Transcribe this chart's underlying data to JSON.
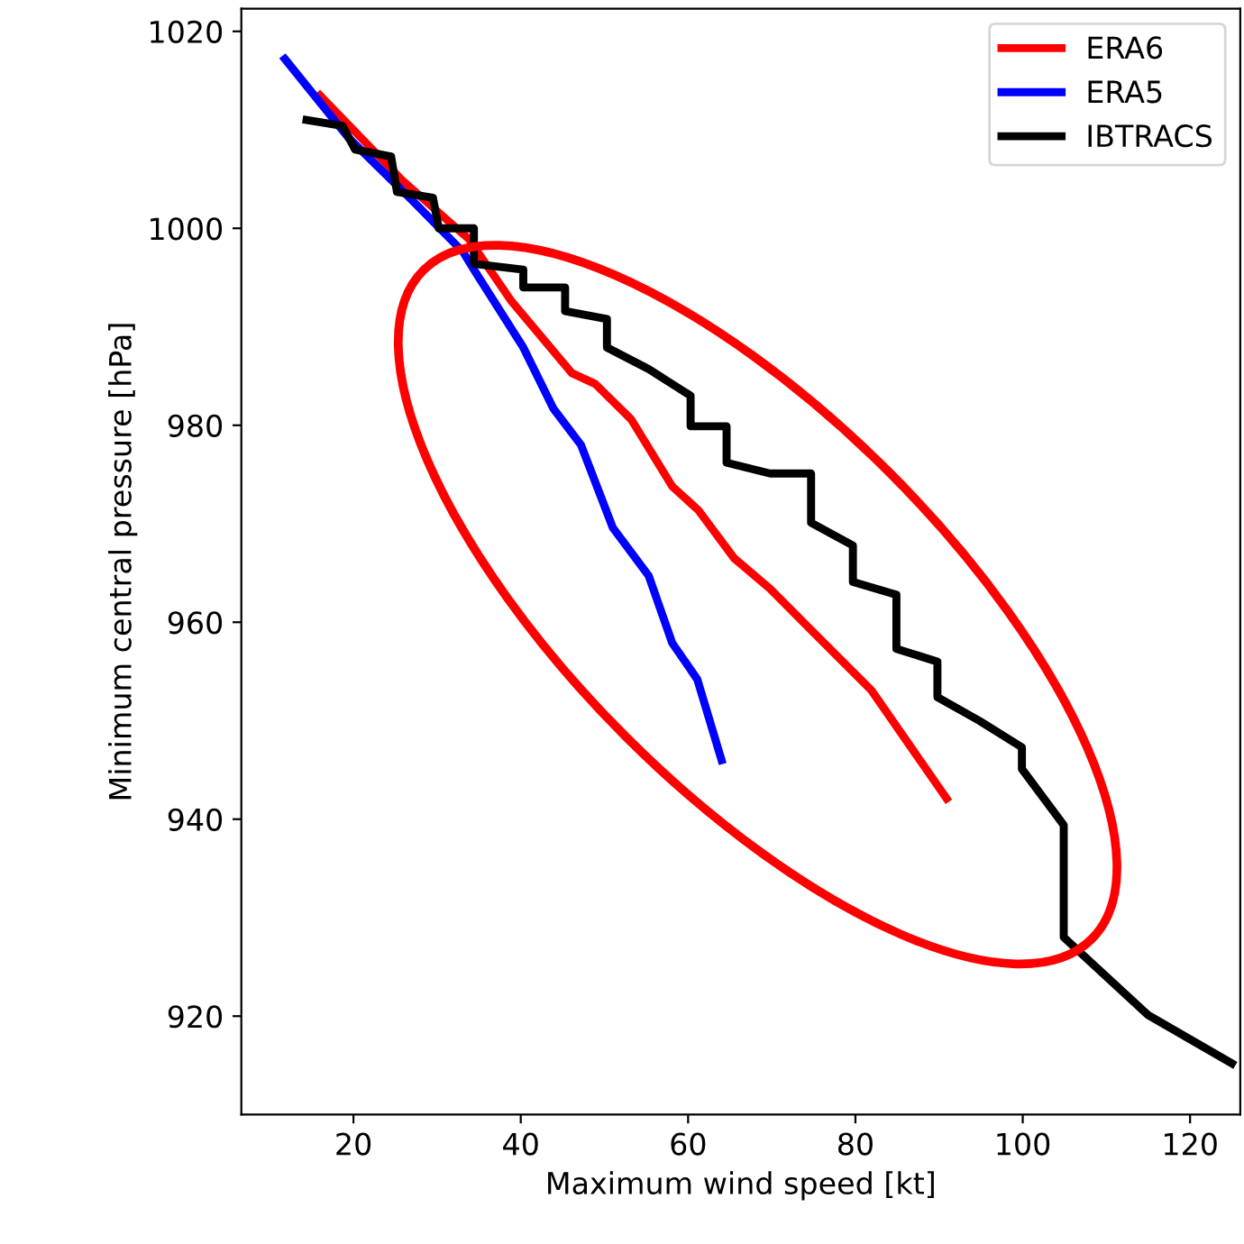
{
  "chart_data": {
    "type": "line",
    "xlabel": "Maximum wind speed [kt]",
    "ylabel": "Minimum central pressure [hPa]",
    "xlim": [
      6.6,
      126
    ],
    "ylim": [
      910,
      1022.3
    ],
    "xticks": [
      20,
      40,
      60,
      80,
      100,
      120
    ],
    "yticks": [
      920,
      940,
      960,
      980,
      1000,
      1020
    ],
    "grid": false,
    "legend": "top right",
    "marker": "none",
    "line_style": "solid",
    "series": [
      {
        "name": "ERA6",
        "color": "#ff0000",
        "x": [
          16,
          25.8,
          33.8,
          38.8,
          46.1,
          48.9,
          53.2,
          58.1,
          61.2,
          65.5,
          69.8,
          74.7,
          81.9,
          90.9
        ],
        "values": [
          1013.5,
          1004.9,
          998.9,
          992.7,
          985.3,
          984.2,
          980.6,
          973.8,
          971.4,
          966.5,
          963.4,
          959.2,
          953.1,
          942.1
        ]
      },
      {
        "name": "ERA5",
        "color": "#0000ff",
        "x": [
          11.8,
          19.4,
          27.3,
          33.1,
          34.4,
          40.3,
          43.9,
          47.2,
          51,
          55.3,
          58.1,
          61.1,
          64
        ],
        "values": [
          1017.2,
          1009.2,
          1002.6,
          997.6,
          995.8,
          987.9,
          981.7,
          978,
          969.6,
          964.7,
          957.9,
          954.2,
          946
        ]
      },
      {
        "name": "IBTRACS",
        "color": "#000000",
        "x": [
          14.4,
          18.7,
          20.2,
          24.5,
          25.2,
          29.5,
          30.2,
          34.4,
          34.4,
          40.3,
          40.3,
          45.3,
          45.3,
          50.3,
          50.3,
          55.3,
          60.3,
          60.3,
          64.6,
          64.6,
          69.8,
          74.7,
          74.7,
          79.7,
          79.7,
          84.9,
          84.9,
          89.8,
          89.8,
          94.8,
          99.9,
          99.9,
          104.9,
          104.9,
          115,
          125
        ],
        "values": [
          1011,
          1010.4,
          1008,
          1007.3,
          1003.7,
          1003.1,
          1000,
          1000,
          996.4,
          995.8,
          994,
          994,
          991.6,
          990.8,
          987.9,
          985.7,
          983,
          979.9,
          979.9,
          976.2,
          975.1,
          975.1,
          970.1,
          967.8,
          964.1,
          962.8,
          957.3,
          956,
          952.4,
          950,
          947.3,
          945.1,
          939.4,
          928,
          920.1,
          915.2
        ]
      }
    ]
  }
}
